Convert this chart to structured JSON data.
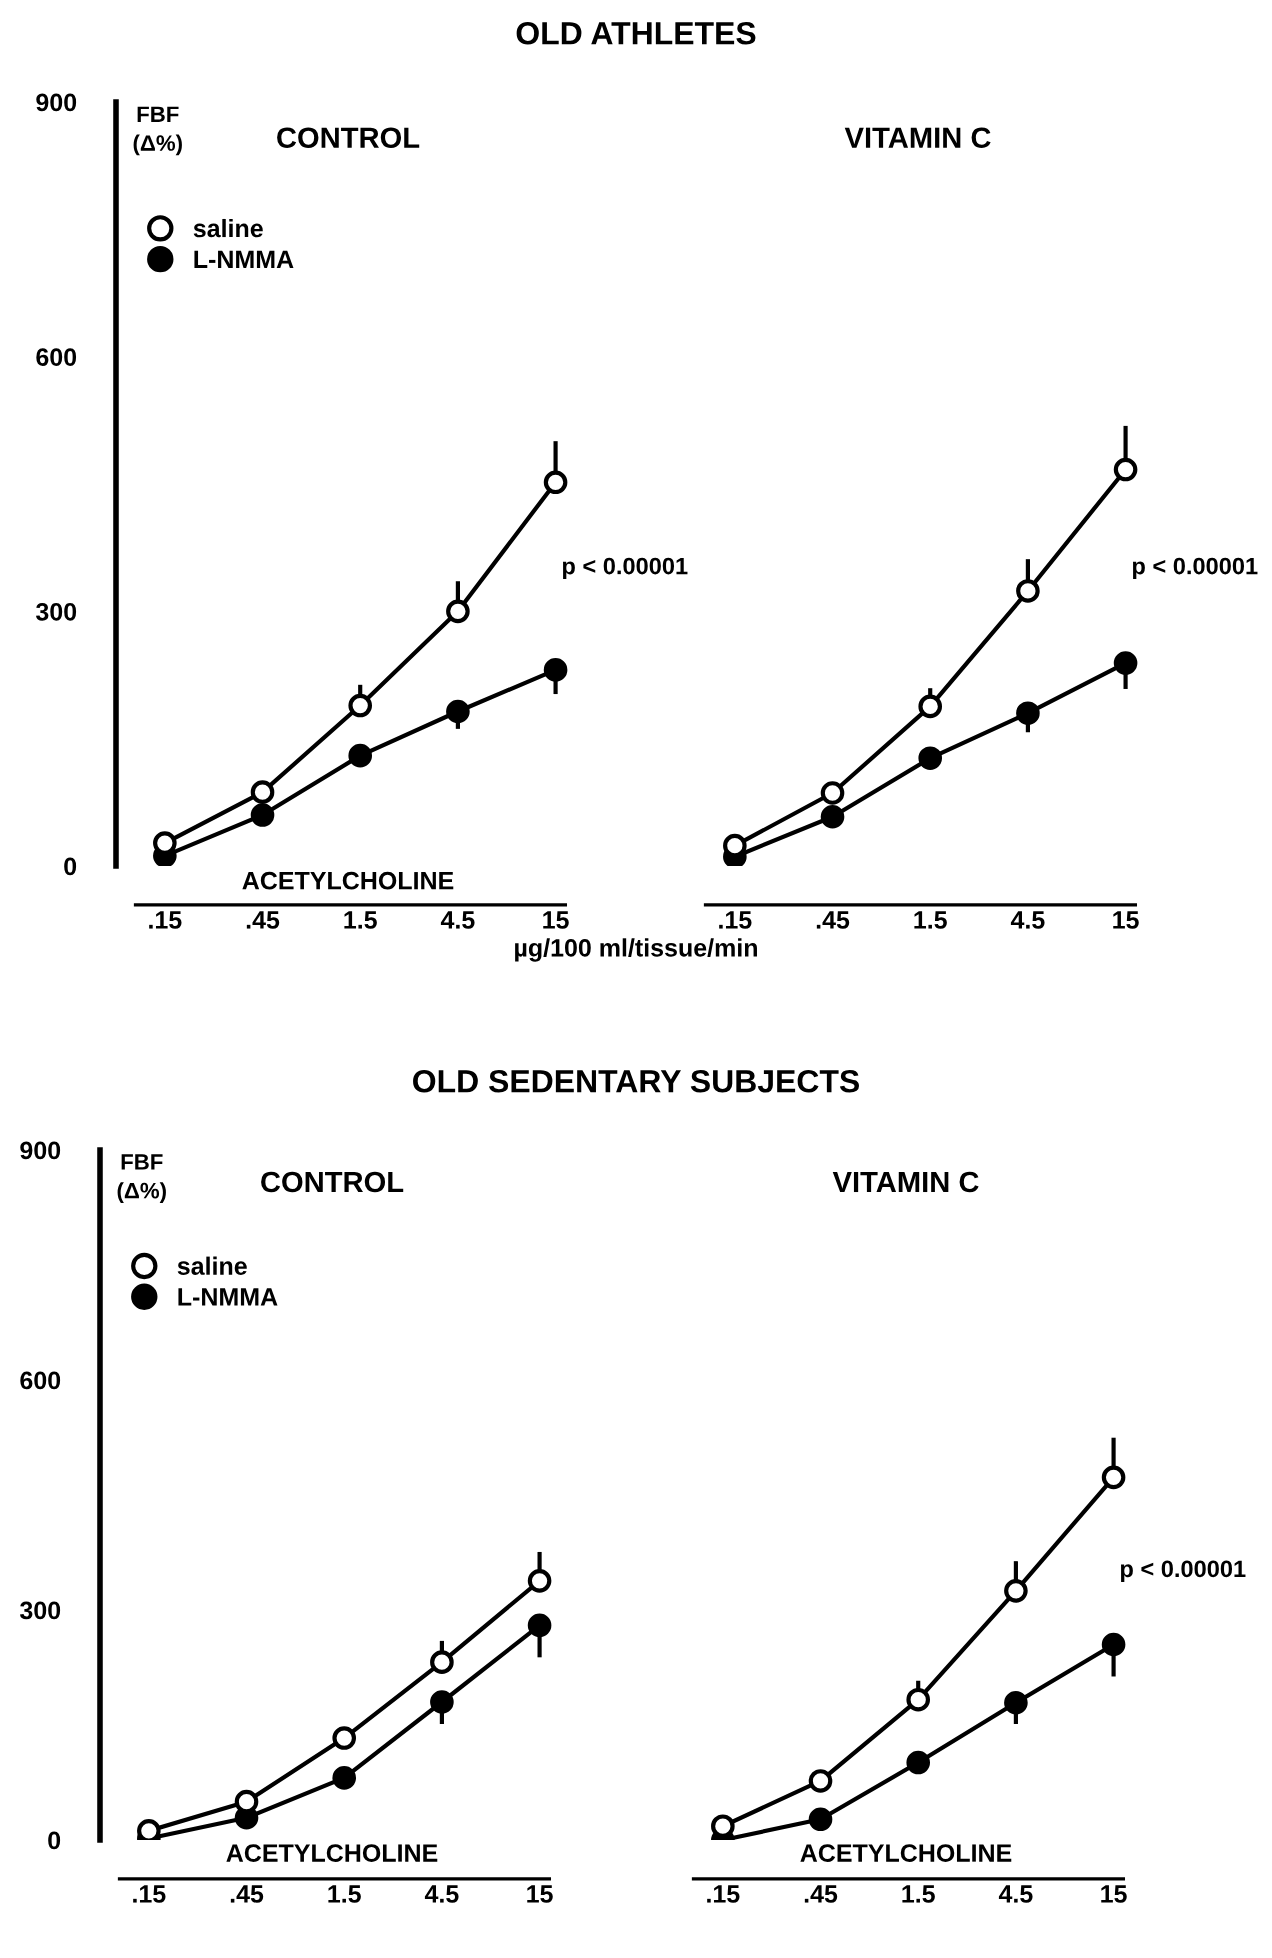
{
  "chart_data": [
    {
      "type": "line",
      "title": "OLD ATHLETES",
      "subtitle": "CONTROL",
      "ylabel": "FBF\n(Δ%)",
      "xlabel": "ACETYLCHOLINE",
      "categories": [
        ".15",
        ".45",
        "1.5",
        "4.5",
        "15"
      ],
      "ylim": [
        0,
        900
      ],
      "yticks": [
        0,
        300,
        600,
        900
      ],
      "legend": "top left",
      "marker": "circle",
      "line_style": "solid",
      "grid": false,
      "annotations": [
        "p < 0.00001",
        "µg/100 ml/tissue/min"
      ],
      "series": [
        {
          "name": "saline",
          "color": "#ffffff",
          "values": [
            27,
            87,
            189,
            300,
            452
          ],
          "errors": [
            null,
            null,
            [
              189,
              211
            ],
            [
              300,
              333
            ],
            [
              452,
              498
            ]
          ]
        },
        {
          "name": "L-NMMA",
          "color": "#000000",
          "values": [
            12,
            60,
            130,
            182,
            231
          ],
          "errors": [
            null,
            null,
            null,
            [
              164,
              182
            ],
            [
              205,
              231
            ]
          ]
        }
      ]
    },
    {
      "type": "line",
      "subtitle": "VITAMIN C",
      "categories": [
        ".15",
        ".45",
        "1.5",
        "4.5",
        "15"
      ],
      "ylim": [
        0,
        900
      ],
      "tick_labels": "x",
      "marker": "circle",
      "line_style": "solid",
      "grid": false,
      "annotations": [
        "p < 0.00001"
      ],
      "series": [
        {
          "color": "#ffffff",
          "values": [
            24,
            86,
            188,
            324,
            467
          ],
          "errors": [
            null,
            null,
            [
              188,
              207
            ],
            [
              324,
              359
            ],
            [
              467,
              516
            ]
          ]
        },
        {
          "color": "#000000",
          "values": [
            11,
            58,
            127,
            180,
            239
          ],
          "errors": [
            null,
            null,
            null,
            [
              160,
              180
            ],
            [
              211,
              239
            ]
          ]
        }
      ]
    },
    {
      "type": "line",
      "title": "OLD SEDENTARY SUBJECTS",
      "subtitle": "CONTROL",
      "ylabel": "FBF\n(Δ%)",
      "xlabel": "ACETYLCHOLINE",
      "categories": [
        ".15",
        ".45",
        "1.5",
        "4.5",
        "15"
      ],
      "ylim": [
        0,
        900
      ],
      "yticks": [
        0,
        300,
        600,
        900
      ],
      "legend": "top left",
      "marker": "circle",
      "line_style": "solid",
      "grid": false,
      "series": [
        {
          "name": "saline",
          "color": "#ffffff",
          "values": [
            12,
            50,
            133,
            232,
            338
          ],
          "errors": [
            null,
            null,
            null,
            [
              232,
              257
            ],
            [
              338,
              373
            ]
          ]
        },
        {
          "name": "L-NMMA",
          "color": "#000000",
          "values": [
            2,
            29,
            81,
            180,
            280
          ],
          "errors": [
            null,
            null,
            null,
            [
              154,
              180
            ],
            [
              241,
              280
            ]
          ]
        }
      ]
    },
    {
      "type": "line",
      "subtitle": "VITAMIN C",
      "xlabel": "ACETYLCHOLINE",
      "categories": [
        ".15",
        ".45",
        "1.5",
        "4.5",
        "15"
      ],
      "ylim": [
        0,
        900
      ],
      "tick_labels": "x",
      "marker": "circle",
      "line_style": "solid",
      "grid": false,
      "annotations": [
        "p < 0.00001"
      ],
      "series": [
        {
          "color": "#ffffff",
          "values": [
            18,
            77,
            183,
            325,
            473
          ],
          "errors": [
            null,
            null,
            [
              183,
              205
            ],
            [
              325,
              361
            ],
            [
              473,
              522
            ]
          ]
        },
        {
          "color": "#000000",
          "values": [
            0,
            27,
            101,
            179,
            255
          ],
          "errors": [
            null,
            null,
            null,
            [
              154,
              179
            ],
            [
              216,
              255
            ]
          ]
        }
      ]
    }
  ]
}
